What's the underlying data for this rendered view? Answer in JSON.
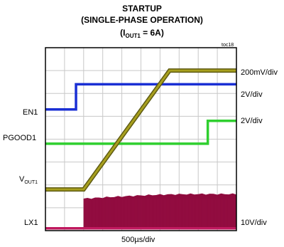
{
  "chart_data": {
    "type": "line",
    "title": "STARTUP",
    "subtitle": "(SINGLE-PHASE OPERATION)",
    "condition": {
      "prefix": "(I",
      "sub": "OUT1",
      "suffix": " = 6A)"
    },
    "chart_id": "toc18",
    "xlabel": "500µs/div",
    "grid": true,
    "divisions": {
      "x": 10,
      "y": 8
    },
    "traces": [
      {
        "name": "EN1",
        "scale": "2V/div",
        "color": "#1a2fd4",
        "kind": "step",
        "low_div": 5.3,
        "high_div": 6.4,
        "step_at_div": 1.6
      },
      {
        "name": "PGOOD1",
        "scale": "2V/div",
        "color": "#2fcf2f",
        "kind": "step",
        "low_div": 3.8,
        "high_div": 4.8,
        "step_at_div": 8.5
      },
      {
        "name": "V",
        "name_sub": "OUT1",
        "scale": "200mV/div",
        "color": "#a8a01e",
        "kind": "ramp",
        "low_div": 1.8,
        "high_div": 7.0,
        "ramp_start_div": 2.0,
        "ramp_end_div": 6.5
      },
      {
        "name": "LX1",
        "scale": "10V/div",
        "color": "#c0185e",
        "kind": "switching",
        "low_div": 0.1,
        "high_start_div": 1.4,
        "high_end_div": 1.6,
        "start_div": 2.0
      }
    ],
    "fill_color": "#8f0b3e"
  }
}
